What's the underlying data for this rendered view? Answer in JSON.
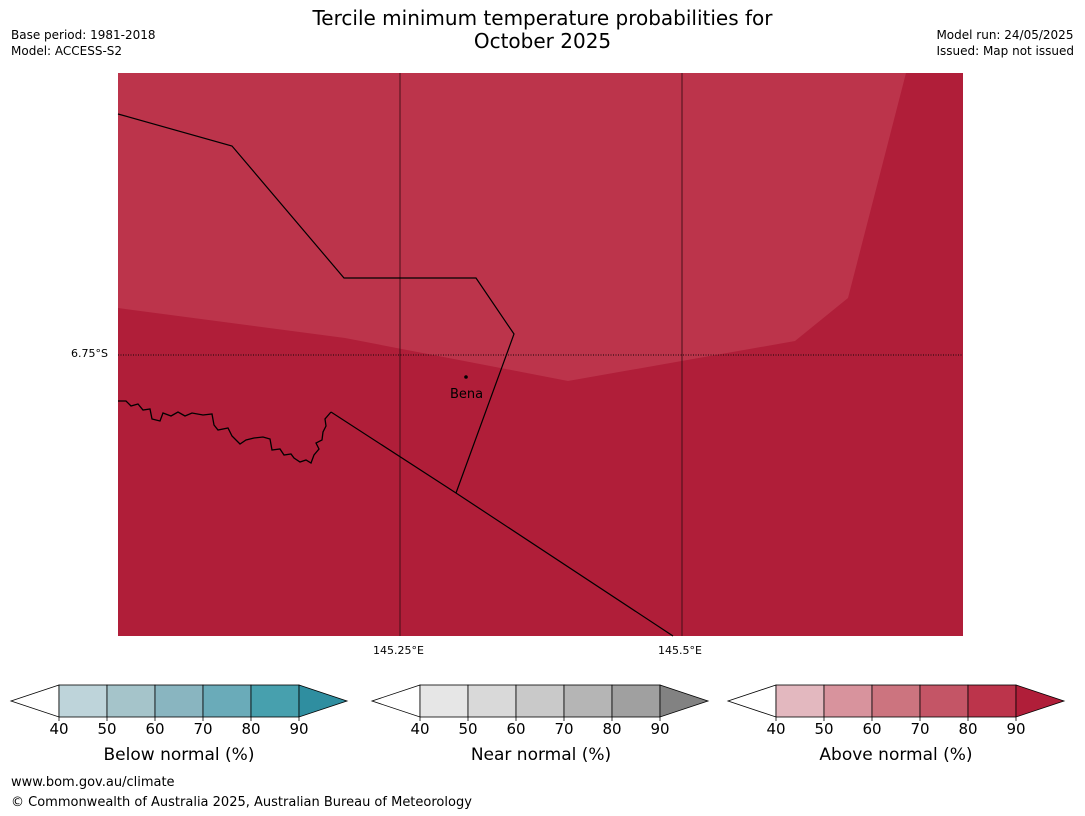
{
  "header": {
    "title_line1": "Tercile minimum temperature probabilities for",
    "title_line2": "October 2025",
    "base_period": "Base period: 1981-2018",
    "model": "Model: ACCESS-S2",
    "model_run": "Model run: 24/05/2025",
    "issued": "Issued: Map not issued"
  },
  "map": {
    "longitude_labels": [
      "145.25°E",
      "145.5°E"
    ],
    "latitude_labels": [
      "6.75°S"
    ],
    "place": "Bena",
    "colors": {
      "above_80_90": "#bc344b",
      "above_90_plus": "#b01e39"
    }
  },
  "colorbars": [
    {
      "title": "Below normal (%)",
      "ticks": [
        "40",
        "50",
        "60",
        "70",
        "80",
        "90"
      ],
      "colors": [
        "#ffffff",
        "#bed4da",
        "#a5c4ca",
        "#89b5c0",
        "#6aabb9",
        "#47a0ae",
        "#2f8ea0"
      ]
    },
    {
      "title": "Near normal (%)",
      "ticks": [
        "40",
        "50",
        "60",
        "70",
        "80",
        "90"
      ],
      "colors": [
        "#ffffff",
        "#e6e6e6",
        "#d9d9d9",
        "#c9c9c9",
        "#b5b5b5",
        "#a0a0a0",
        "#828282"
      ]
    },
    {
      "title": "Above normal (%)",
      "ticks": [
        "40",
        "50",
        "60",
        "70",
        "80",
        "90"
      ],
      "colors": [
        "#ffffff",
        "#e3b8bf",
        "#d8939d",
        "#cc747f",
        "#c45566",
        "#bc344b",
        "#b01e39"
      ]
    }
  ],
  "footer": {
    "website": "www.bom.gov.au/climate",
    "copyright": "© Commonwealth of Australia 2025, Australian Bureau of Meteorology"
  }
}
